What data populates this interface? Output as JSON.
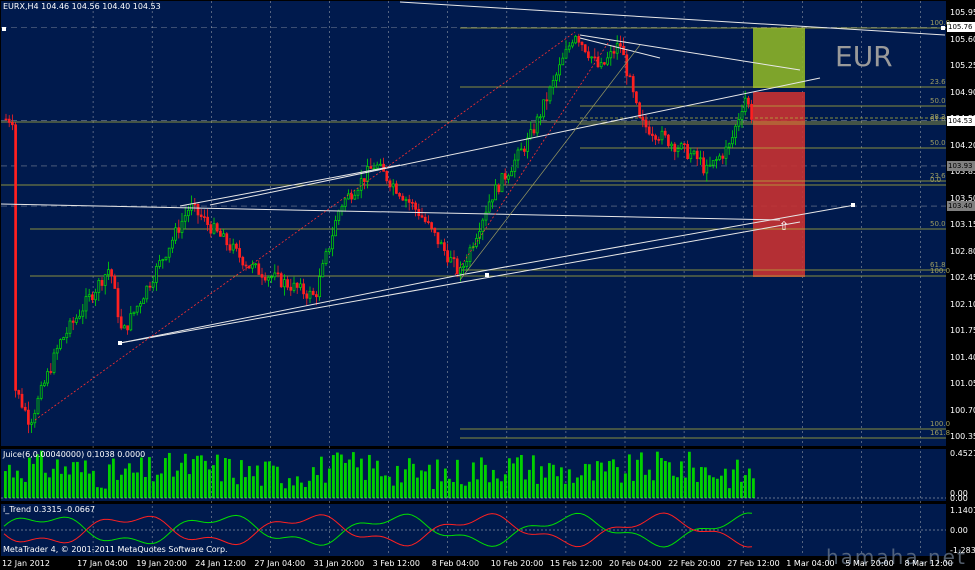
{
  "header": {
    "symbol_line": "EURX,H4  104.46 104.56 104.40 104.53"
  },
  "annotation": {
    "currency_label": "EUR"
  },
  "watermark": "hamaha.net",
  "price_axis": {
    "labels": [
      "105.95",
      "105.60",
      "105.25",
      "104.90",
      "104.55",
      "104.20",
      "103.85",
      "103.50",
      "103.15",
      "102.80",
      "102.45",
      "102.10",
      "101.75",
      "101.40",
      "101.05",
      "100.70",
      "100.35"
    ],
    "tags": [
      {
        "text": "105.76",
        "bg": "#ffffff"
      },
      {
        "text": "104.53",
        "bg": "#ffffff"
      },
      {
        "text": "103.93",
        "bg": "#808080"
      },
      {
        "text": "103.40",
        "bg": "#808080"
      }
    ]
  },
  "fib_labels": [
    "100.0",
    "23.6",
    "50.0",
    "38.2",
    "61.8",
    "50.0",
    "23.6",
    "0.0",
    "50.0",
    "61.8",
    "100.0",
    "100.0",
    "161.8"
  ],
  "juice_panel": {
    "title": "Juice(6,0.00040000) 0.1038 0.0000",
    "axis_labels": [
      "0.4521",
      "0.00",
      "0.00"
    ]
  },
  "trend_panel": {
    "title": "i_Trend 0.3315 -0.0667",
    "axis_labels": [
      "1.1401",
      "0.00",
      "-1.2837"
    ]
  },
  "copyright": "MetaTrader 4, © 2001-2011 MetaQuotes Software Corp.",
  "time_axis": [
    "12 Jan 2012",
    "17 Jan 04:00",
    "19 Jan 20:00",
    "24 Jan 12:00",
    "27 Jan 04:00",
    "31 Jan 20:00",
    "3 Feb 12:00",
    "8 Feb 04:00",
    "10 Feb 20:00",
    "15 Feb 12:00",
    "20 Feb 04:00",
    "22 Feb 20:00",
    "27 Feb 12:00",
    "1 Mar 04:00",
    "5 Mar 20:00",
    "8 Mar 12:00"
  ],
  "colors": {
    "background": "#001a4d",
    "bull": "#00e000",
    "bear": "#ff2020",
    "grid": "#c8c8c8",
    "fib": "#b4b43c",
    "trendline": "#e8e8e8",
    "target_zone": "#8cb428",
    "stop_zone": "#c83232"
  }
}
